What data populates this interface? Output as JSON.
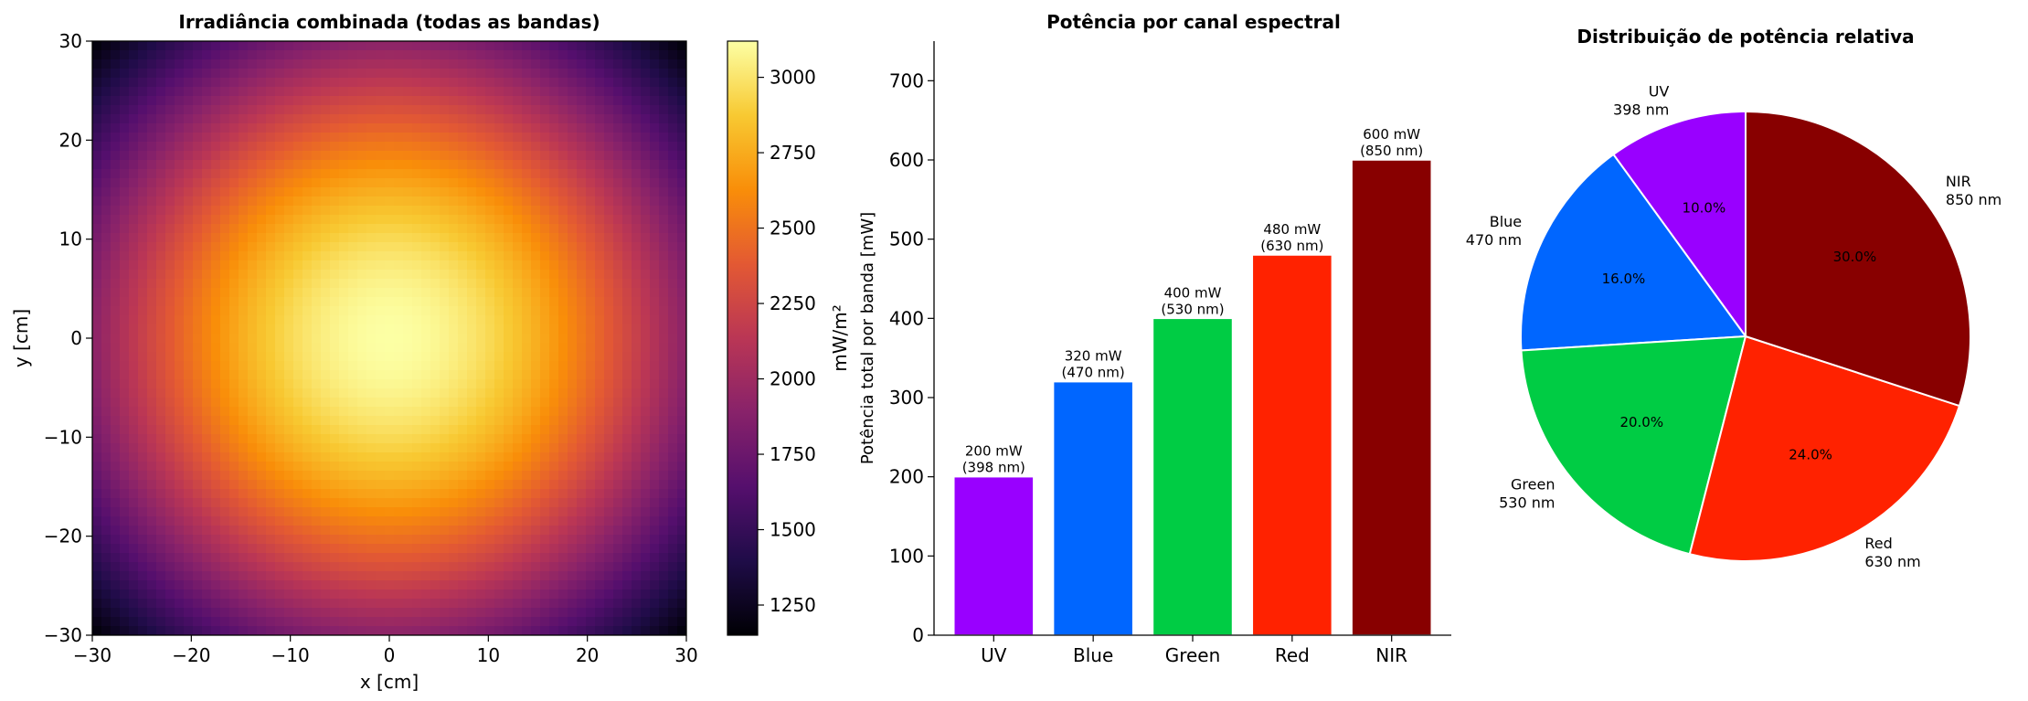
{
  "chart_data": [
    {
      "type": "heatmap",
      "title": "Irradiância combinada (todas as bandas)",
      "xlabel": "x [cm]",
      "ylabel": "y [cm]",
      "xlim": [
        -30,
        30
      ],
      "ylim": [
        -30,
        30
      ],
      "x_ticks": [
        "−30",
        "−20",
        "−10",
        "0",
        "10",
        "20",
        "30"
      ],
      "y_ticks": [
        "−30",
        "−20",
        "−10",
        "0",
        "10",
        "20",
        "30"
      ],
      "colormap": "inferno",
      "colorbar": {
        "label": "mW/m²",
        "range": [
          1150,
          3120
        ],
        "ticks": [
          "1250",
          "1500",
          "1750",
          "2000",
          "2250",
          "2500",
          "2750",
          "3000"
        ]
      },
      "field": {
        "peak": 3120,
        "corner": 1150,
        "center": [
          0,
          0
        ]
      }
    },
    {
      "type": "bar",
      "title": "Potência por canal espectral",
      "xlabel": "",
      "ylabel": "Potência total por banda [mW]",
      "ylim": [
        0,
        750
      ],
      "y_ticks": [
        "0",
        "100",
        "200",
        "300",
        "400",
        "500",
        "600",
        "700"
      ],
      "categories": [
        "UV",
        "Blue",
        "Green",
        "Red",
        "NIR"
      ],
      "values": [
        200,
        320,
        400,
        480,
        600
      ],
      "data_labels": [
        [
          "200 mW",
          "(398 nm)"
        ],
        [
          "320 mW",
          "(470 nm)"
        ],
        [
          "400 mW",
          "(530 nm)"
        ],
        [
          "480 mW",
          "(630 nm)"
        ],
        [
          "600 mW",
          "(850 nm)"
        ]
      ],
      "colors": [
        "#9900FF",
        "#0066FF",
        "#00CC44",
        "#FF2200",
        "#880000"
      ]
    },
    {
      "type": "pie",
      "title": "Distribuição de potência relativa",
      "labels": [
        [
          "UV",
          "398 nm"
        ],
        [
          "Blue",
          "470 nm"
        ],
        [
          "Green",
          "530 nm"
        ],
        [
          "Red",
          "630 nm"
        ],
        [
          "NIR",
          "850 nm"
        ]
      ],
      "values": [
        10.0,
        16.0,
        20.0,
        24.0,
        30.0
      ],
      "pct_labels": [
        "10.0%",
        "16.0%",
        "20.0%",
        "24.0%",
        "30.0%"
      ],
      "colors": [
        "#9900FF",
        "#0066FF",
        "#00CC44",
        "#FF2200",
        "#880000"
      ],
      "start_angle_deg": 90,
      "direction": "counterclockwise"
    }
  ]
}
